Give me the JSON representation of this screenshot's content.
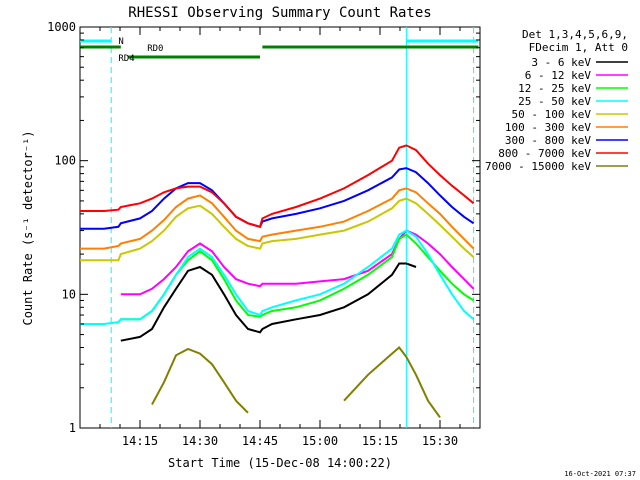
{
  "chart_data": {
    "type": "line",
    "title": "RHESSI Observing Summary Count Rates",
    "xlabel": "Start Time (15-Dec-08 14:00:22)",
    "ylabel": "Count Rate (s⁻¹ detector⁻¹)",
    "yscale": "log",
    "ylim": [
      1,
      1000
    ],
    "xlim": [
      14.0,
      15.6667
    ],
    "yticks": [
      {
        "v": 1,
        "label": "1"
      },
      {
        "v": 10,
        "label": "10"
      },
      {
        "v": 100,
        "label": "100"
      },
      {
        "v": 1000,
        "label": "1000"
      }
    ],
    "xticks": [
      {
        "v": 14.25,
        "label": "14:15"
      },
      {
        "v": 14.5,
        "label": "14:30"
      },
      {
        "v": 14.75,
        "label": "14:45"
      },
      {
        "v": 15.0,
        "label": "15:00"
      },
      {
        "v": 15.25,
        "label": "15:15"
      },
      {
        "v": 15.5,
        "label": "15:30"
      }
    ],
    "legend_header": [
      "Det 1,3,4,5,6,9,",
      "FDecim 1, Att 0"
    ],
    "legend_position": "right",
    "timestamp": "16-Oct-2021 07:37",
    "x": [
      14.0,
      14.1,
      14.16,
      14.17,
      14.25,
      14.3,
      14.35,
      14.4,
      14.45,
      14.5,
      14.55,
      14.6,
      14.65,
      14.7,
      14.75,
      14.76,
      14.8,
      14.9,
      15.0,
      15.1,
      15.2,
      15.3,
      15.33,
      15.36,
      15.4,
      15.45,
      15.5,
      15.55,
      15.6,
      15.64
    ],
    "series": [
      {
        "name": "3 - 6 keV",
        "color": "#000000",
        "values": [
          null,
          null,
          null,
          4.5,
          4.8,
          5.5,
          8,
          11,
          15,
          16,
          14,
          10,
          7,
          5.5,
          5.2,
          5.5,
          6,
          6.5,
          7,
          8,
          10,
          14,
          17,
          17,
          16,
          null,
          null,
          null,
          null,
          null
        ]
      },
      {
        "name": "6 - 12 keV",
        "color": "#ff00ff",
        "values": [
          null,
          null,
          null,
          10,
          10,
          11,
          13,
          16,
          21,
          24,
          21,
          16,
          13,
          12,
          11.5,
          12,
          12,
          12,
          12.5,
          13,
          15,
          20,
          26,
          30,
          28,
          24,
          20,
          16,
          13,
          11
        ]
      },
      {
        "name": "12 - 25 keV",
        "color": "#00ff00",
        "values": [
          null,
          null,
          null,
          6.5,
          6.5,
          7.5,
          10,
          14,
          18,
          21,
          18,
          13,
          9,
          7,
          6.8,
          7,
          7.5,
          8,
          9,
          11,
          14,
          19,
          26,
          28,
          24,
          19,
          15,
          12,
          10,
          9
        ]
      },
      {
        "name": "25 - 50 keV",
        "color": "#00ffff",
        "values": [
          6,
          6,
          6.2,
          6.5,
          6.5,
          7.5,
          10,
          14,
          19,
          22,
          19,
          14,
          10,
          7.5,
          7,
          7.5,
          8,
          9,
          10,
          12,
          16,
          22,
          28,
          30,
          27,
          20,
          14,
          10,
          7.5,
          6.5
        ]
      },
      {
        "name": "50 - 100 keV",
        "color": "#c8c800",
        "values": [
          18,
          18,
          18,
          20,
          22,
          25,
          30,
          38,
          44,
          46,
          40,
          32,
          26,
          23,
          22,
          24,
          25,
          26,
          28,
          30,
          35,
          44,
          50,
          52,
          48,
          40,
          33,
          27,
          22,
          19
        ]
      },
      {
        "name": "100 - 300 keV",
        "color": "#ff8000",
        "values": [
          22,
          22,
          23,
          24,
          26,
          30,
          36,
          45,
          52,
          55,
          48,
          38,
          30,
          26,
          25,
          27,
          28,
          30,
          32,
          35,
          42,
          52,
          60,
          62,
          58,
          48,
          40,
          32,
          26,
          22
        ]
      },
      {
        "name": "300 - 800 keV",
        "color": "#0000ff",
        "values": [
          31,
          31,
          32,
          34,
          37,
          42,
          52,
          62,
          68,
          68,
          60,
          48,
          38,
          34,
          32,
          35,
          37,
          40,
          44,
          50,
          60,
          75,
          86,
          88,
          82,
          68,
          55,
          45,
          38,
          34
        ]
      },
      {
        "name": "800 - 7000 keV",
        "color": "#ff0000",
        "values": [
          42,
          42,
          43,
          45,
          48,
          52,
          58,
          62,
          64,
          64,
          58,
          48,
          38,
          34,
          32,
          37,
          40,
          45,
          52,
          62,
          78,
          100,
          125,
          130,
          120,
          95,
          78,
          65,
          55,
          48
        ]
      },
      {
        "name": "7000 - 15000 keV",
        "color": "#808000",
        "values": [
          null,
          null,
          null,
          null,
          null,
          1.5,
          2.2,
          3.5,
          3.9,
          3.6,
          3,
          2.2,
          1.6,
          1.3,
          null,
          null,
          null,
          null,
          null,
          1.6,
          2.5,
          3.6,
          4,
          3.4,
          2.5,
          1.6,
          1.2,
          null,
          null,
          null
        ]
      }
    ],
    "attenuator_bars": [
      {
        "label": "N",
        "color": "#00ffff",
        "segments": [
          [
            14.0,
            14.13
          ],
          [
            15.36,
            15.66
          ]
        ]
      },
      {
        "label": "RD0",
        "color": "#008000",
        "segments": [
          [
            14.0,
            14.17
          ],
          [
            14.76,
            15.66
          ]
        ]
      },
      {
        "label": "RD4",
        "color": "#008000",
        "segments": [
          [
            14.2,
            14.75
          ]
        ]
      }
    ],
    "vertical_lines": [
      14.13,
      15.36,
      15.64
    ]
  }
}
